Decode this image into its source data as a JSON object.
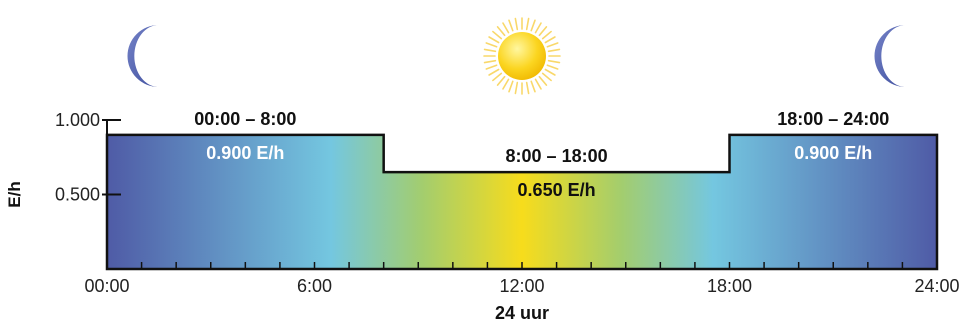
{
  "chart_data": {
    "type": "area",
    "title": "",
    "xlabel": "24 uur",
    "ylabel": "E/h",
    "xlim": [
      0,
      24
    ],
    "ylim": [
      0,
      1.0
    ],
    "x_ticks": [
      "00:00",
      "6:00",
      "12:00",
      "18:00",
      "24:00"
    ],
    "y_ticks": [
      "1.000",
      "0.500"
    ],
    "x_minor_tick_step_hours": 1,
    "segments": [
      {
        "start": 0,
        "end": 8,
        "value": 0.9,
        "range_label": "00:00 – 8:00",
        "value_label": "0.900 E/h"
      },
      {
        "start": 8,
        "end": 18,
        "value": 0.65,
        "range_label": "8:00 – 18:00",
        "value_label": "0.650 E/h"
      },
      {
        "start": 18,
        "end": 24,
        "value": 0.9,
        "range_label": "18:00 – 24:00",
        "value_label": "0.900 E/h"
      }
    ],
    "icons": [
      {
        "name": "moon-icon",
        "hour": 1.2
      },
      {
        "name": "sun-icon",
        "hour": 12
      },
      {
        "name": "moon-icon",
        "hour": 22.8
      }
    ],
    "colors": {
      "night": "#4f5ba6",
      "dawn": "#74c7e0",
      "midday": "#f7dc1c",
      "day": "#a3cd6e",
      "outline": "#111111",
      "moon": "#5567b5",
      "sun": "#f8d21e"
    },
    "grid": false,
    "legend": "none"
  }
}
